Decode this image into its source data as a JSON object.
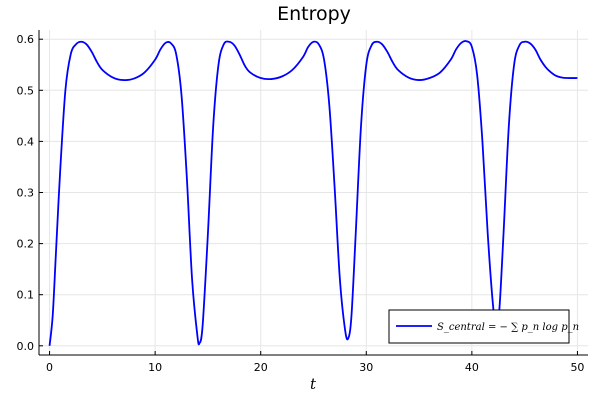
{
  "chart_data": {
    "type": "line",
    "title": "Entropy",
    "xlabel": "t",
    "ylabel": "",
    "xlim": [
      -1,
      51
    ],
    "ylim": [
      -0.018,
      0.618
    ],
    "xticks": [
      0,
      10,
      20,
      30,
      40,
      50
    ],
    "xtick_labels": [
      "0",
      "10",
      "20",
      "30",
      "40",
      "50"
    ],
    "yticks": [
      0.0,
      0.1,
      0.2,
      0.3,
      0.4,
      0.5,
      0.6
    ],
    "ytick_labels": [
      "0.0",
      "0.1",
      "0.2",
      "0.3",
      "0.4",
      "0.5",
      "0.6"
    ],
    "grid": true,
    "legend_position": "bottom-right",
    "series": [
      {
        "name": "S_central = − ∑ p_n log p_n",
        "color": "#0000ff",
        "points": [
          [
            0.0,
            0.0
          ],
          [
            0.3,
            0.06
          ],
          [
            0.6,
            0.18
          ],
          [
            1.0,
            0.34
          ],
          [
            1.5,
            0.5
          ],
          [
            2.0,
            0.57
          ],
          [
            2.5,
            0.59
          ],
          [
            3.0,
            0.595
          ],
          [
            3.5,
            0.59
          ],
          [
            4.0,
            0.575
          ],
          [
            4.5,
            0.555
          ],
          [
            5.0,
            0.54
          ],
          [
            6.0,
            0.525
          ],
          [
            7.0,
            0.52
          ],
          [
            8.0,
            0.523
          ],
          [
            9.0,
            0.535
          ],
          [
            10.0,
            0.56
          ],
          [
            10.5,
            0.58
          ],
          [
            11.0,
            0.593
          ],
          [
            11.5,
            0.592
          ],
          [
            12.0,
            0.57
          ],
          [
            12.5,
            0.49
          ],
          [
            13.0,
            0.33
          ],
          [
            13.5,
            0.13
          ],
          [
            14.0,
            0.02
          ],
          [
            14.2,
            0.005
          ],
          [
            14.5,
            0.04
          ],
          [
            15.0,
            0.22
          ],
          [
            15.5,
            0.43
          ],
          [
            16.0,
            0.55
          ],
          [
            16.5,
            0.59
          ],
          [
            17.0,
            0.595
          ],
          [
            17.5,
            0.588
          ],
          [
            18.0,
            0.57
          ],
          [
            18.5,
            0.548
          ],
          [
            19.0,
            0.535
          ],
          [
            20.0,
            0.524
          ],
          [
            21.0,
            0.522
          ],
          [
            22.0,
            0.527
          ],
          [
            23.0,
            0.54
          ],
          [
            24.0,
            0.565
          ],
          [
            24.5,
            0.585
          ],
          [
            25.0,
            0.595
          ],
          [
            25.5,
            0.59
          ],
          [
            26.0,
            0.56
          ],
          [
            26.5,
            0.47
          ],
          [
            27.0,
            0.31
          ],
          [
            27.5,
            0.13
          ],
          [
            28.0,
            0.03
          ],
          [
            28.3,
            0.015
          ],
          [
            28.6,
            0.06
          ],
          [
            29.0,
            0.22
          ],
          [
            29.5,
            0.43
          ],
          [
            30.0,
            0.55
          ],
          [
            30.5,
            0.588
          ],
          [
            31.0,
            0.595
          ],
          [
            31.5,
            0.59
          ],
          [
            32.0,
            0.575
          ],
          [
            32.5,
            0.555
          ],
          [
            33.0,
            0.54
          ],
          [
            34.0,
            0.525
          ],
          [
            35.0,
            0.52
          ],
          [
            36.0,
            0.524
          ],
          [
            37.0,
            0.535
          ],
          [
            38.0,
            0.56
          ],
          [
            38.5,
            0.58
          ],
          [
            39.0,
            0.593
          ],
          [
            39.5,
            0.596
          ],
          [
            40.0,
            0.585
          ],
          [
            40.5,
            0.53
          ],
          [
            41.0,
            0.4
          ],
          [
            41.5,
            0.22
          ],
          [
            42.0,
            0.08
          ],
          [
            42.3,
            0.04
          ],
          [
            42.6,
            0.07
          ],
          [
            43.0,
            0.22
          ],
          [
            43.5,
            0.43
          ],
          [
            44.0,
            0.55
          ],
          [
            44.5,
            0.588
          ],
          [
            45.0,
            0.595
          ],
          [
            45.5,
            0.592
          ],
          [
            46.0,
            0.58
          ],
          [
            46.5,
            0.56
          ],
          [
            47.0,
            0.545
          ],
          [
            47.5,
            0.535
          ],
          [
            48.0,
            0.528
          ],
          [
            48.5,
            0.525
          ],
          [
            49.0,
            0.524
          ],
          [
            50.0,
            0.524
          ]
        ]
      }
    ]
  }
}
